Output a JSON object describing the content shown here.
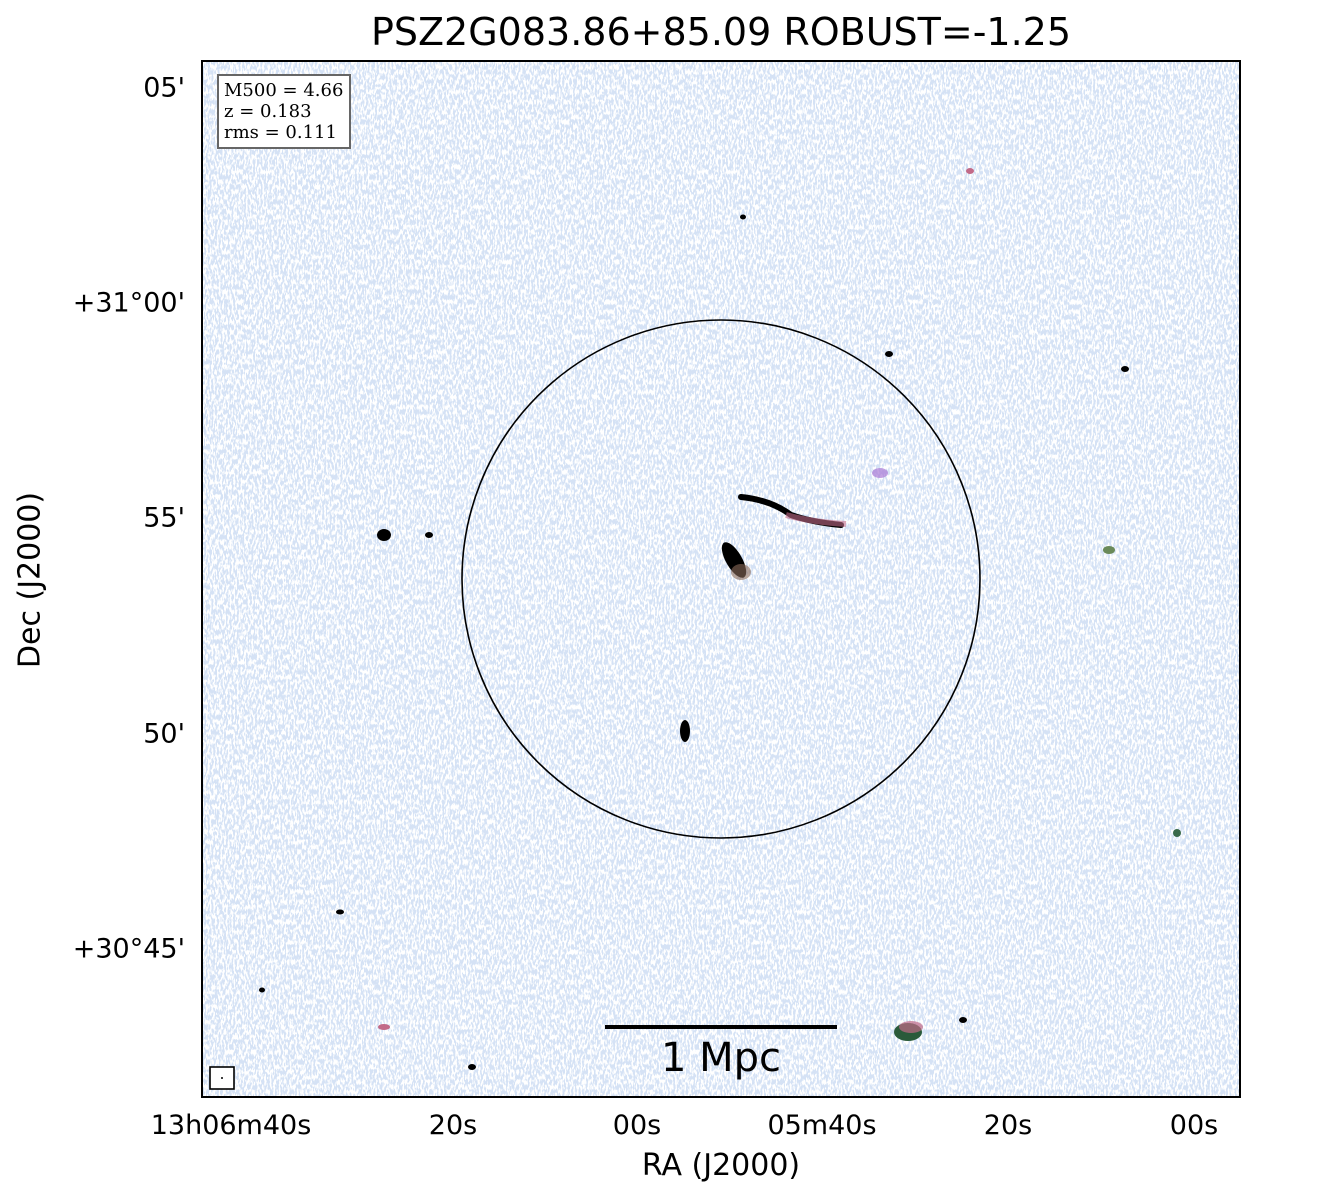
{
  "title": "PSZ2G083.86+85.09 ROBUST=-1.25",
  "axes": {
    "xlabel": "RA (J2000)",
    "ylabel": "Dec (J2000)",
    "xticks": [
      "13h06m40s",
      "20s",
      "00s",
      "05m40s",
      "20s",
      "00s"
    ],
    "yticks": [
      "05'",
      "+31°00'",
      "55'",
      "50'",
      "+30°45'"
    ]
  },
  "info_box": {
    "line1": "M500 = 4.66",
    "line2": "z = 0.183",
    "line3": "rms = 0.111"
  },
  "scale_bar": {
    "label": "1 Mpc"
  },
  "colors": {
    "noise": "#7ea6d6",
    "emission_mid": "#a97ad6",
    "emission_high": "#c26a88",
    "emission_peak": "#000000"
  }
}
